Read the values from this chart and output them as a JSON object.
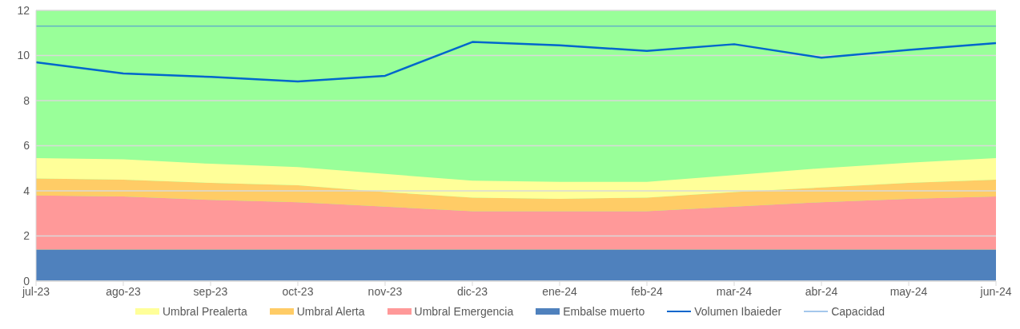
{
  "chart_data": {
    "type": "area",
    "stacked": true,
    "categories": [
      "jul-23",
      "ago-23",
      "sep-23",
      "oct-23",
      "nov-23",
      "dic-23",
      "ene-24",
      "feb-24",
      "mar-24",
      "abr-24",
      "may-24",
      "jun-24"
    ],
    "series": [
      {
        "name": "Embalse muerto",
        "color": "#4f81bd",
        "values": [
          1.4,
          1.4,
          1.4,
          1.4,
          1.4,
          1.4,
          1.4,
          1.4,
          1.4,
          1.4,
          1.4,
          1.4
        ]
      },
      {
        "name": "Umbral Emergencia",
        "color": "#ff9999",
        "values": [
          2.4,
          2.35,
          2.2,
          2.1,
          1.9,
          1.7,
          1.7,
          1.7,
          1.9,
          2.1,
          2.25,
          2.35
        ]
      },
      {
        "name": "Umbral Alerta",
        "color": "#ffcc66",
        "values": [
          0.75,
          0.75,
          0.75,
          0.75,
          0.65,
          0.6,
          0.55,
          0.6,
          0.65,
          0.65,
          0.7,
          0.75
        ]
      },
      {
        "name": "Umbral Prealerta",
        "color": "#ffff99",
        "values": [
          0.9,
          0.9,
          0.85,
          0.8,
          0.8,
          0.75,
          0.75,
          0.7,
          0.75,
          0.85,
          0.9,
          0.95
        ]
      },
      {
        "name": "Volumen Ibaieder",
        "type": "line",
        "color": "#0066cc",
        "values": [
          9.7,
          9.2,
          9.05,
          8.85,
          9.1,
          10.6,
          10.45,
          10.2,
          10.5,
          9.9,
          10.25,
          10.55
        ]
      },
      {
        "name": "Capacidad",
        "type": "line",
        "color": "#4a90d9",
        "values": [
          11.3,
          11.3,
          11.3,
          11.3,
          11.3,
          11.3,
          11.3,
          11.3,
          11.3,
          11.3,
          11.3,
          11.3
        ]
      }
    ],
    "bands": [
      {
        "axis": "y",
        "from": 0,
        "to": 12,
        "color": "#99ff99"
      }
    ],
    "ylim": [
      0,
      12
    ],
    "yticks": [
      0,
      2,
      4,
      6,
      8,
      10,
      12
    ],
    "grid": "y",
    "legend": "bottom"
  }
}
